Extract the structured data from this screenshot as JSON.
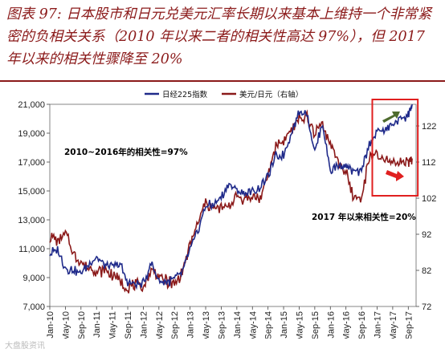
{
  "title": "图表 97: 日本股市和日元兑美元汇率长期以来基本上维持一个非常紧密的负相关关系（2010 年以来二者的相关性高达 97%），但 2017 年以来的相关性骤降至 20%",
  "watermark": "大盘股资讯",
  "colors": {
    "nikkei": "#1F2A8A",
    "usdjpy": "#8B1A1A",
    "highlight": "#E02020",
    "arrow_up": "#4E6B2E",
    "arrow_down": "#E02020"
  },
  "chart_data": {
    "type": "line",
    "title": "",
    "legend_position": "top",
    "x_ticks": [
      "Jan-10",
      "May-10",
      "Sep-10",
      "Jan-11",
      "May-11",
      "Sep-11",
      "Jan-12",
      "May-12",
      "Sep-12",
      "Jan-13",
      "May-13",
      "Sep-13",
      "Jan-14",
      "May-14",
      "Sep-14",
      "Jan-15",
      "May-15",
      "Sep-15",
      "Jan-16",
      "May-16",
      "Sep-16",
      "Jan-17",
      "May-17",
      "Sep-17"
    ],
    "y_left": {
      "ticks": [
        "7,000",
        "9,000",
        "11,000",
        "13,000",
        "15,000",
        "17,000",
        "19,000",
        "21,000"
      ],
      "range": [
        7000,
        21000
      ]
    },
    "y_right": {
      "ticks": [
        "72",
        "82",
        "92",
        "102",
        "112",
        "122"
      ],
      "range": [
        72,
        128
      ],
      "label": "右轴"
    },
    "annotations": [
      "2010~2016年的相关性=97%",
      "2017 年以来相关性=20%"
    ],
    "series": [
      {
        "name": "日经225指数",
        "axis": "left",
        "months": [
          "Jan-10",
          "Mar-10",
          "May-10",
          "Jul-10",
          "Sep-10",
          "Nov-10",
          "Jan-11",
          "Mar-11",
          "May-11",
          "Jul-11",
          "Sep-11",
          "Nov-11",
          "Jan-12",
          "Mar-12",
          "May-12",
          "Jul-12",
          "Sep-12",
          "Nov-12",
          "Jan-13",
          "Mar-13",
          "May-13",
          "Jul-13",
          "Sep-13",
          "Nov-13",
          "Jan-14",
          "Mar-14",
          "May-14",
          "Jul-14",
          "Sep-14",
          "Nov-14",
          "Jan-15",
          "Mar-15",
          "May-15",
          "Jul-15",
          "Sep-15",
          "Nov-15",
          "Jan-16",
          "Mar-16",
          "May-16",
          "Jul-16",
          "Sep-16",
          "Nov-16",
          "Jan-17",
          "Mar-17",
          "May-17",
          "Jul-17",
          "Sep-17",
          "Oct-17"
        ],
        "values": [
          10700,
          10900,
          9700,
          9500,
          9300,
          9900,
          10400,
          9800,
          9700,
          9900,
          8700,
          8500,
          8600,
          10000,
          8800,
          8700,
          8900,
          9400,
          10900,
          12300,
          14000,
          14000,
          14600,
          15500,
          15000,
          14800,
          14900,
          15300,
          16000,
          17400,
          17500,
          19000,
          20500,
          20400,
          17700,
          19700,
          16400,
          16800,
          16700,
          16300,
          16400,
          18300,
          19100,
          19200,
          19700,
          20000,
          20300,
          21000
        ]
      },
      {
        "name": "美元/日元（右轴）",
        "axis": "right",
        "months": [
          "Jan-10",
          "Mar-10",
          "May-10",
          "Jul-10",
          "Sep-10",
          "Nov-10",
          "Jan-11",
          "Mar-11",
          "May-11",
          "Jul-11",
          "Sep-11",
          "Nov-11",
          "Jan-12",
          "Mar-12",
          "May-12",
          "Jul-12",
          "Sep-12",
          "Nov-12",
          "Jan-13",
          "Mar-13",
          "May-13",
          "Jul-13",
          "Sep-13",
          "Nov-13",
          "Jan-14",
          "Mar-14",
          "May-14",
          "Jul-14",
          "Sep-14",
          "Nov-14",
          "Jan-15",
          "Mar-15",
          "May-15",
          "Jul-15",
          "Sep-15",
          "Nov-15",
          "Jan-16",
          "Mar-16",
          "May-16",
          "Jul-16",
          "Sep-16",
          "Nov-16",
          "Jan-17",
          "Mar-17",
          "May-17",
          "Jul-17",
          "Sep-17",
          "Oct-17"
        ],
        "values": [
          91,
          90,
          92,
          87,
          84,
          83,
          82,
          82,
          81,
          79,
          77,
          78,
          77,
          82,
          80,
          79,
          78,
          82,
          89,
          95,
          101,
          99,
          99,
          100,
          103,
          102,
          102,
          102,
          108,
          117,
          118,
          121,
          124,
          124,
          120,
          123,
          117,
          112,
          109,
          102,
          102,
          113,
          114,
          112,
          112,
          112,
          112,
          113
        ]
      }
    ]
  }
}
